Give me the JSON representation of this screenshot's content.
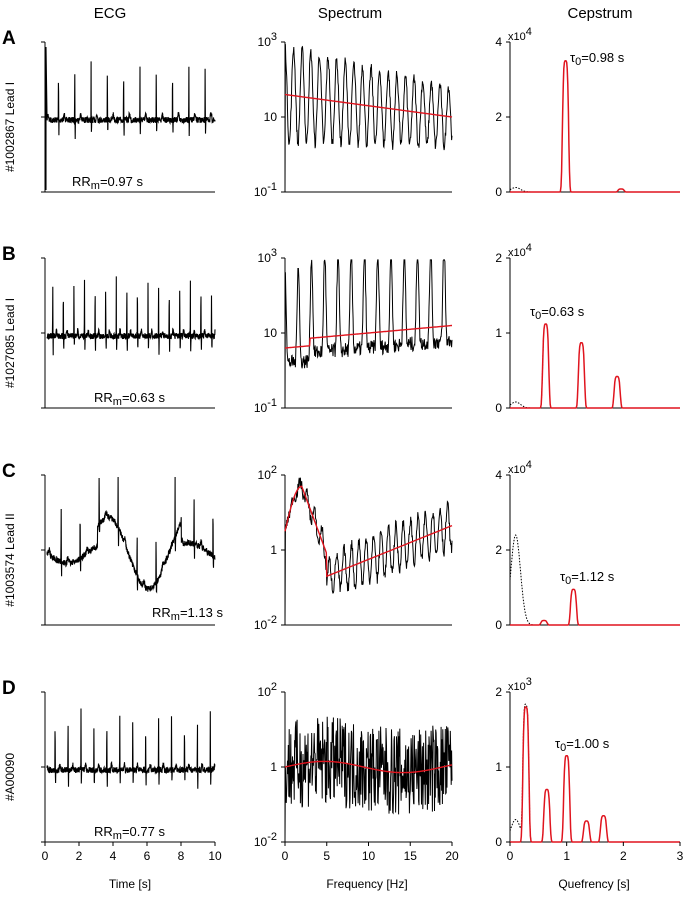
{
  "chart_data": {
    "type": "line",
    "column_titles": [
      "ECG",
      "Spectrum",
      "Cepstrum"
    ],
    "x_labels": {
      "ecg": "Time [s]",
      "spectrum": "Frequency [Hz]",
      "cepstrum": "Quefrency [s]"
    },
    "x_ticks": {
      "ecg": [
        "0",
        "2",
        "4",
        "6",
        "8",
        "10"
      ],
      "spectrum": [
        "0",
        "5",
        "10",
        "15",
        "20"
      ],
      "cepstrum": [
        "0",
        "1",
        "2",
        "3"
      ]
    },
    "x_ranges": {
      "ecg": [
        0,
        10
      ],
      "spectrum": [
        0,
        20
      ],
      "cepstrum": [
        0,
        3
      ]
    },
    "series_legend": {
      "ecg": "ECG signal (black)",
      "spectrum": [
        "Spectrum (black)",
        "Smoothed spectrum (red)"
      ],
      "cepstrum": [
        "Cepstrum (red)",
        "Raw cepstrum (dotted black)"
      ]
    },
    "panels": [
      {
        "letter": "A",
        "record": "#1002867",
        "lead": "Lead I",
        "rr_label": "RR",
        "rr_sub": "m",
        "rr_value": "=0.97 s",
        "rr_m_s": 0.97,
        "spectrum_yticks": [
          {
            "base": "10",
            "exp": "3",
            "log10": 3
          },
          {
            "base": "10",
            "exp": "",
            "log10": 1
          },
          {
            "base": "10",
            "exp": "-1",
            "log10": -1
          }
        ],
        "spectrum_ylim_log10": [
          -1,
          3
        ],
        "cepstrum_yticks": [
          "0",
          "2",
          "4"
        ],
        "cepstrum_ymax": 4,
        "cepstrum_scale_base": "x10",
        "cepstrum_scale_exp": "4",
        "tau_label": "τ",
        "tau_sub": "0",
        "tau_value": "=0.98 s",
        "tau_s": 0.98,
        "cepstrum_peaks": [
          {
            "q": 0.98,
            "h": 3.5
          },
          {
            "q": 1.96,
            "h": 0.08
          }
        ],
        "dotted_early": 0.12
      },
      {
        "letter": "B",
        "record": "#1027085",
        "lead": "Lead I",
        "rr_label": "RR",
        "rr_sub": "m",
        "rr_value": "=0.63 s",
        "rr_m_s": 0.63,
        "spectrum_yticks": [
          {
            "base": "10",
            "exp": "3",
            "log10": 3
          },
          {
            "base": "10",
            "exp": "",
            "log10": 1
          },
          {
            "base": "10",
            "exp": "-1",
            "log10": -1
          }
        ],
        "spectrum_ylim_log10": [
          -1,
          3
        ],
        "cepstrum_yticks": [
          "0",
          "1",
          "2"
        ],
        "cepstrum_ymax": 2,
        "cepstrum_scale_base": "x10",
        "cepstrum_scale_exp": "4",
        "tau_label": "τ",
        "tau_sub": "0",
        "tau_value": "=0.63 s",
        "tau_s": 0.63,
        "cepstrum_peaks": [
          {
            "q": 0.63,
            "h": 1.12
          },
          {
            "q": 1.26,
            "h": 0.87
          },
          {
            "q": 1.89,
            "h": 0.42
          }
        ],
        "dotted_early": 0.08
      },
      {
        "letter": "C",
        "record": "#1003574",
        "lead": "Lead II",
        "rr_label": "RR",
        "rr_sub": "m",
        "rr_value": "=1.13 s",
        "rr_m_s": 1.13,
        "spectrum_yticks": [
          {
            "base": "10",
            "exp": "2",
            "log10": 2
          },
          {
            "base": "1",
            "exp": "",
            "log10": 0
          },
          {
            "base": "10",
            "exp": "-2",
            "log10": -2
          }
        ],
        "spectrum_ylim_log10": [
          -2,
          2
        ],
        "cepstrum_yticks": [
          "0",
          "2",
          "4"
        ],
        "cepstrum_ymax": 4,
        "cepstrum_scale_base": "x10",
        "cepstrum_scale_exp": "4",
        "tau_label": "τ",
        "tau_sub": "0",
        "tau_value": "=1.12 s",
        "tau_s": 1.12,
        "cepstrum_peaks": [
          {
            "q": 0.6,
            "h": 0.12
          },
          {
            "q": 1.12,
            "h": 0.95
          }
        ],
        "dotted_early": 2.4
      },
      {
        "letter": "D",
        "record": "#A00090",
        "lead": "",
        "rr_label": "RR",
        "rr_sub": "m",
        "rr_value": "=0.77 s",
        "rr_m_s": 0.77,
        "spectrum_yticks": [
          {
            "base": "10",
            "exp": "2",
            "log10": 2
          },
          {
            "base": "1",
            "exp": "",
            "log10": 0
          },
          {
            "base": "10",
            "exp": "-2",
            "log10": -2
          }
        ],
        "spectrum_ylim_log10": [
          -2,
          2
        ],
        "cepstrum_yticks": [
          "0",
          "1",
          "2"
        ],
        "cepstrum_ymax": 2,
        "cepstrum_scale_base": "x10",
        "cepstrum_scale_exp": "3",
        "tau_label": "τ",
        "tau_sub": "0",
        "tau_value": "=1.00 s",
        "tau_s": 1.0,
        "cepstrum_peaks": [
          {
            "q": 0.28,
            "h": 1.8
          },
          {
            "q": 0.65,
            "h": 0.7
          },
          {
            "q": 1.0,
            "h": 1.15
          },
          {
            "q": 1.35,
            "h": 0.28
          },
          {
            "q": 1.65,
            "h": 0.35
          }
        ],
        "dotted_early": 0.3
      }
    ]
  }
}
